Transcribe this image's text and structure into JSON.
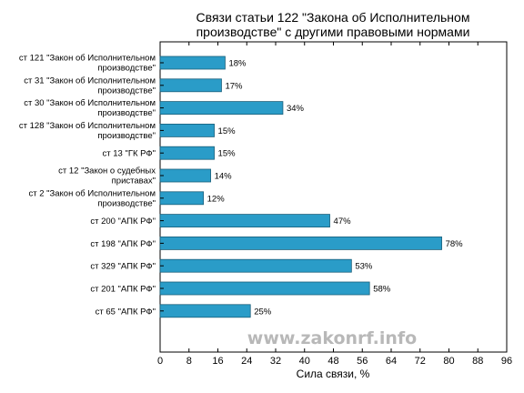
{
  "chart_data": {
    "type": "bar",
    "orientation": "horizontal",
    "title_lines": [
      "Связи статьи 122 \"Закона об Исполнительном",
      "производстве\" с другими правовыми нормами"
    ],
    "xlabel": "Сила связи, %",
    "ylabel": "",
    "xlim": [
      0,
      96
    ],
    "xticks": [
      "0",
      "8",
      "16",
      "24",
      "32",
      "40",
      "48",
      "56",
      "64",
      "72",
      "80",
      "88",
      "96"
    ],
    "grid": false,
    "bar_color": "#2a9cc8",
    "categories": [
      [
        "ст 121 \"Закон об Исполнительном",
        "производстве\""
      ],
      [
        "ст 31 \"Закон об Исполнительном",
        "производстве\""
      ],
      [
        "ст 30 \"Закон об Исполнительном",
        "производстве\""
      ],
      [
        "ст 128 \"Закон об Исполнительном",
        "производстве\""
      ],
      [
        "ст 13 \"ГК РФ\""
      ],
      [
        "ст 12 \"Закон о судебных",
        "приставах\""
      ],
      [
        "ст 2 \"Закон об Исполнительном",
        "производстве\""
      ],
      [
        "ст 200 \"АПК РФ\""
      ],
      [
        "ст 198 \"АПК РФ\""
      ],
      [
        "ст 329 \"АПК РФ\""
      ],
      [
        "ст 201 \"АПК РФ\""
      ],
      [
        "ст 65 \"АПК РФ\""
      ]
    ],
    "values": [
      18,
      17,
      34,
      15,
      15,
      14,
      12,
      47,
      78,
      53,
      58,
      25
    ],
    "value_labels": [
      "18%",
      "17%",
      "34%",
      "15%",
      "15%",
      "14%",
      "12%",
      "47%",
      "78%",
      "53%",
      "58%",
      "25%"
    ]
  },
  "watermark": "www.zakonrf.info"
}
